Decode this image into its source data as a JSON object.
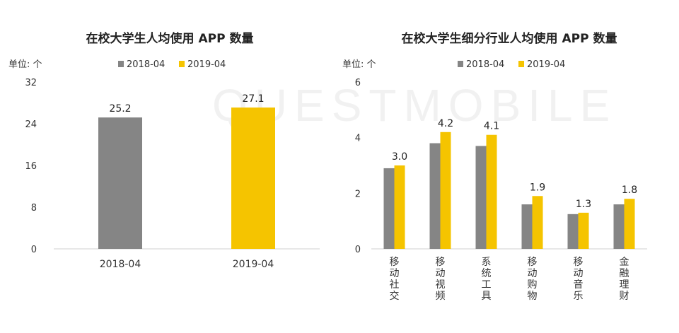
{
  "watermark": "QUESTMOBILE",
  "colors": {
    "2018-04": "#858585",
    "2019-04": "#f5c400"
  },
  "chart_data": [
    {
      "type": "bar",
      "title": "在校大学生人均使用 APP 数量",
      "unit": "单位: 个",
      "categories": [
        "2018-04",
        "2019-04"
      ],
      "series": [
        {
          "name": "2018-04",
          "values": [
            25.2,
            null
          ]
        },
        {
          "name": "2019-04",
          "values": [
            null,
            27.1
          ]
        }
      ],
      "ylim": [
        0,
        32
      ],
      "yticks": [
        0,
        8,
        16,
        24,
        32
      ],
      "legend": "top",
      "grid": false
    },
    {
      "type": "bar",
      "title": "在校大学生细分行业人均使用 APP 数量",
      "unit": "单位: 个",
      "categories": [
        "移动社交",
        "移动视频",
        "系统工具",
        "移动购物",
        "移动音乐",
        "金融理财"
      ],
      "series": [
        {
          "name": "2018-04",
          "values": [
            2.9,
            3.8,
            3.7,
            1.6,
            1.25,
            1.6
          ]
        },
        {
          "name": "2019-04",
          "values": [
            3.0,
            4.2,
            4.1,
            1.9,
            1.3,
            1.8
          ]
        }
      ],
      "labels": [
        "3.0",
        "4.2",
        "4.1",
        "1.9",
        "1.3",
        "1.8"
      ],
      "ylim": [
        0,
        6
      ],
      "yticks": [
        0,
        2,
        4,
        6
      ],
      "legend": "top",
      "grid": false
    }
  ]
}
